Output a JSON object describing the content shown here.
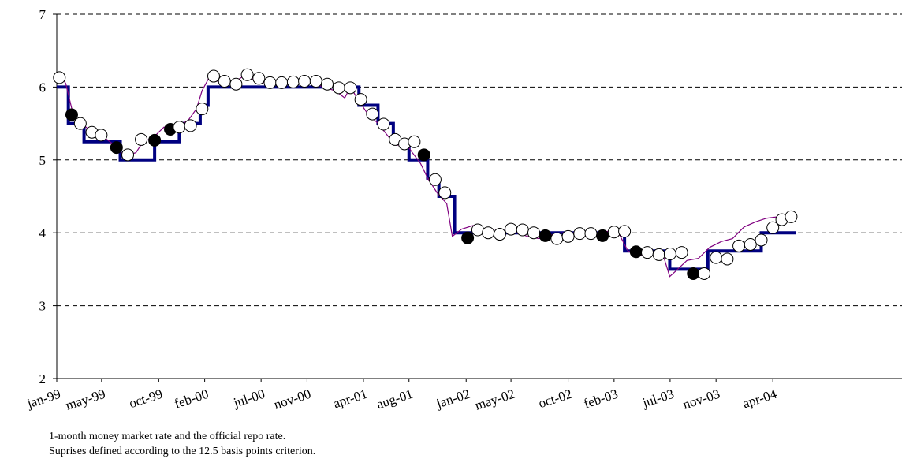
{
  "caption": {
    "line1": "1-month money market rate and the official  repo  rate.",
    "line2": "Suprises defined according to the 12.5 basis points criterion."
  },
  "colors": {
    "repo": "#000080",
    "market": "#800080",
    "grid": "#000000",
    "marker_fill_surprise": "#000000",
    "marker_fill_other": "#ffffff"
  },
  "chart_data": {
    "type": "line",
    "title": "",
    "xlabel": "",
    "ylabel": "",
    "ylim": [
      2,
      7
    ],
    "yticks": [
      2,
      3,
      4,
      5,
      6,
      7
    ],
    "xlim": [
      "1999-01",
      "2004-06"
    ],
    "grid": "horizontal dashed",
    "xtick_labels": [
      {
        "label": "jan-99",
        "date": "1999-01"
      },
      {
        "label": "may-99",
        "date": "1999-05"
      },
      {
        "label": "oct-99",
        "date": "1999-10"
      },
      {
        "label": "feb-00",
        "date": "2000-02"
      },
      {
        "label": "jul-00",
        "date": "2000-07"
      },
      {
        "label": "nov-00",
        "date": "2000-11"
      },
      {
        "label": "apr-01",
        "date": "2001-04"
      },
      {
        "label": "aug-01",
        "date": "2001-08"
      },
      {
        "label": "jan-02",
        "date": "2002-01"
      },
      {
        "label": "may-02",
        "date": "2002-05"
      },
      {
        "label": "oct-02",
        "date": "2002-10"
      },
      {
        "label": "feb-03",
        "date": "2003-02"
      },
      {
        "label": "jul-03",
        "date": "2003-07"
      },
      {
        "label": "nov-03",
        "date": "2003-11"
      },
      {
        "label": "apr-04",
        "date": "2004-04"
      }
    ],
    "repo_rate_steps": [
      {
        "date": "1999-01-01",
        "value": 6.0
      },
      {
        "date": "1999-02-01",
        "value": 5.5
      },
      {
        "date": "1999-03-15",
        "value": 5.25
      },
      {
        "date": "1999-06-20",
        "value": 5.0
      },
      {
        "date": "1999-09-20",
        "value": 5.25
      },
      {
        "date": "1999-11-25",
        "value": 5.5
      },
      {
        "date": "2000-01-20",
        "value": 5.75
      },
      {
        "date": "2000-02-10",
        "value": 6.0
      },
      {
        "date": "2001-03-20",
        "value": 5.75
      },
      {
        "date": "2001-05-10",
        "value": 5.5
      },
      {
        "date": "2001-06-20",
        "value": 5.25
      },
      {
        "date": "2001-08-01",
        "value": 5.0
      },
      {
        "date": "2001-09-20",
        "value": 4.75
      },
      {
        "date": "2001-10-20",
        "value": 4.5
      },
      {
        "date": "2001-12-01",
        "value": 4.0
      },
      {
        "date": "2003-03-01",
        "value": 3.75
      },
      {
        "date": "2003-06-30",
        "value": 3.5
      },
      {
        "date": "2003-10-10",
        "value": 3.75
      },
      {
        "date": "2004-03-01",
        "value": 4.0
      },
      {
        "date": "2004-06-01",
        "value": 4.0
      }
    ],
    "market_rate_points": [
      [
        "1999-01-05",
        6.2
      ],
      [
        "1999-01-25",
        6.05
      ],
      [
        "1999-02-15",
        5.6
      ],
      [
        "1999-03-10",
        5.5
      ],
      [
        "1999-04-10",
        5.35
      ],
      [
        "1999-05-10",
        5.3
      ],
      [
        "1999-06-05",
        5.2
      ],
      [
        "1999-07-01",
        5.05
      ],
      [
        "1999-08-01",
        5.1
      ],
      [
        "1999-08-20",
        5.25
      ],
      [
        "1999-09-15",
        5.3
      ],
      [
        "1999-10-15",
        5.45
      ],
      [
        "1999-11-20",
        5.45
      ],
      [
        "1999-12-20",
        5.55
      ],
      [
        "2000-01-10",
        5.7
      ],
      [
        "2000-01-25",
        5.95
      ],
      [
        "2000-02-15",
        6.15
      ],
      [
        "2000-03-15",
        6.05
      ],
      [
        "2000-04-15",
        6.05
      ],
      [
        "2000-05-15",
        6.15
      ],
      [
        "2000-06-15",
        6.1
      ],
      [
        "2000-07-15",
        6.05
      ],
      [
        "2000-08-15",
        6.05
      ],
      [
        "2000-09-15",
        6.07
      ],
      [
        "2000-10-15",
        6.07
      ],
      [
        "2000-11-15",
        6.05
      ],
      [
        "2000-12-15",
        6.0
      ],
      [
        "2001-01-15",
        5.95
      ],
      [
        "2001-02-10",
        5.85
      ],
      [
        "2001-02-25",
        6.0
      ],
      [
        "2001-03-15",
        5.85
      ],
      [
        "2001-04-10",
        5.65
      ],
      [
        "2001-05-10",
        5.5
      ],
      [
        "2001-06-10",
        5.3
      ],
      [
        "2001-07-01",
        5.2
      ],
      [
        "2001-07-20",
        5.25
      ],
      [
        "2001-08-10",
        5.1
      ],
      [
        "2001-09-01",
        4.95
      ],
      [
        "2001-09-20",
        4.75
      ],
      [
        "2001-10-15",
        4.55
      ],
      [
        "2001-11-10",
        4.4
      ],
      [
        "2001-11-25",
        3.95
      ],
      [
        "2001-12-20",
        4.05
      ],
      [
        "2002-01-20",
        4.1
      ],
      [
        "2002-02-15",
        4.0
      ],
      [
        "2002-03-15",
        4.05
      ],
      [
        "2002-04-15",
        4.05
      ],
      [
        "2002-05-15",
        4.0
      ],
      [
        "2002-06-15",
        3.95
      ],
      [
        "2002-07-15",
        3.92
      ],
      [
        "2002-08-15",
        3.97
      ],
      [
        "2002-09-15",
        4.0
      ],
      [
        "2002-10-15",
        4.0
      ],
      [
        "2002-11-15",
        3.95
      ],
      [
        "2002-12-15",
        4.0
      ],
      [
        "2003-01-15",
        4.02
      ],
      [
        "2003-02-15",
        3.98
      ],
      [
        "2003-03-10",
        3.75
      ],
      [
        "2003-04-01",
        3.72
      ],
      [
        "2003-04-20",
        3.68
      ],
      [
        "2003-05-15",
        3.72
      ],
      [
        "2003-06-15",
        3.65
      ],
      [
        "2003-06-30",
        3.4
      ],
      [
        "2003-07-15",
        3.47
      ],
      [
        "2003-08-15",
        3.62
      ],
      [
        "2003-09-15",
        3.65
      ],
      [
        "2003-10-15",
        3.8
      ],
      [
        "2003-11-15",
        3.88
      ],
      [
        "2003-12-15",
        3.92
      ],
      [
        "2004-01-15",
        4.08
      ],
      [
        "2004-02-15",
        4.15
      ],
      [
        "2004-03-15",
        4.2
      ],
      [
        "2004-04-15",
        4.22
      ]
    ],
    "decision_markers": [
      {
        "date": "1999-01-08",
        "value": 6.13,
        "surprise": false
      },
      {
        "date": "1999-02-10",
        "value": 5.62,
        "surprise": true
      },
      {
        "date": "1999-03-05",
        "value": 5.5,
        "surprise": false
      },
      {
        "date": "1999-04-05",
        "value": 5.38,
        "surprise": false
      },
      {
        "date": "1999-04-30",
        "value": 5.34,
        "surprise": false
      },
      {
        "date": "1999-06-10",
        "value": 5.17,
        "surprise": true
      },
      {
        "date": "1999-07-10",
        "value": 5.07,
        "surprise": false
      },
      {
        "date": "1999-08-15",
        "value": 5.28,
        "surprise": false
      },
      {
        "date": "1999-09-20",
        "value": 5.27,
        "surprise": true
      },
      {
        "date": "1999-11-01",
        "value": 5.42,
        "surprise": true
      },
      {
        "date": "1999-11-25",
        "value": 5.45,
        "surprise": false
      },
      {
        "date": "1999-12-25",
        "value": 5.47,
        "surprise": false
      },
      {
        "date": "2000-01-25",
        "value": 5.7,
        "surprise": false
      },
      {
        "date": "2000-02-25",
        "value": 6.15,
        "surprise": false
      },
      {
        "date": "2000-03-25",
        "value": 6.08,
        "surprise": false
      },
      {
        "date": "2000-04-25",
        "value": 6.04,
        "surprise": false
      },
      {
        "date": "2000-05-25",
        "value": 6.17,
        "surprise": false
      },
      {
        "date": "2000-06-25",
        "value": 6.12,
        "surprise": false
      },
      {
        "date": "2000-07-25",
        "value": 6.06,
        "surprise": false
      },
      {
        "date": "2000-08-25",
        "value": 6.06,
        "surprise": false
      },
      {
        "date": "2000-09-25",
        "value": 6.07,
        "surprise": false
      },
      {
        "date": "2000-10-25",
        "value": 6.08,
        "surprise": false
      },
      {
        "date": "2000-11-25",
        "value": 6.08,
        "surprise": false
      },
      {
        "date": "2000-12-25",
        "value": 6.04,
        "surprise": false
      },
      {
        "date": "2001-01-25",
        "value": 5.99,
        "surprise": false
      },
      {
        "date": "2001-02-25",
        "value": 5.99,
        "surprise": false
      },
      {
        "date": "2001-03-25",
        "value": 5.83,
        "surprise": false
      },
      {
        "date": "2001-04-25",
        "value": 5.63,
        "surprise": false
      },
      {
        "date": "2001-05-25",
        "value": 5.49,
        "surprise": false
      },
      {
        "date": "2001-06-25",
        "value": 5.28,
        "surprise": false
      },
      {
        "date": "2001-07-20",
        "value": 5.22,
        "surprise": false
      },
      {
        "date": "2001-08-15",
        "value": 5.25,
        "surprise": false
      },
      {
        "date": "2001-09-10",
        "value": 5.07,
        "surprise": true
      },
      {
        "date": "2001-10-10",
        "value": 4.73,
        "surprise": false
      },
      {
        "date": "2001-11-05",
        "value": 4.55,
        "surprise": false
      },
      {
        "date": "2002-01-05",
        "value": 3.93,
        "surprise": true
      },
      {
        "date": "2002-02-01",
        "value": 4.04,
        "surprise": false
      },
      {
        "date": "2002-03-01",
        "value": 4.0,
        "surprise": false
      },
      {
        "date": "2002-04-01",
        "value": 3.98,
        "surprise": false
      },
      {
        "date": "2002-05-01",
        "value": 4.05,
        "surprise": false
      },
      {
        "date": "2002-06-01",
        "value": 4.04,
        "surprise": false
      },
      {
        "date": "2002-07-01",
        "value": 4.0,
        "surprise": false
      },
      {
        "date": "2002-08-01",
        "value": 3.96,
        "surprise": true
      },
      {
        "date": "2002-09-01",
        "value": 3.92,
        "surprise": false
      },
      {
        "date": "2002-10-01",
        "value": 3.95,
        "surprise": false
      },
      {
        "date": "2002-11-01",
        "value": 3.99,
        "surprise": false
      },
      {
        "date": "2002-12-01",
        "value": 3.99,
        "surprise": false
      },
      {
        "date": "2003-01-01",
        "value": 3.96,
        "surprise": true
      },
      {
        "date": "2003-02-01",
        "value": 4.01,
        "surprise": false
      },
      {
        "date": "2003-03-01",
        "value": 4.02,
        "surprise": false
      },
      {
        "date": "2003-04-01",
        "value": 3.74,
        "surprise": true
      },
      {
        "date": "2003-05-01",
        "value": 3.73,
        "surprise": false
      },
      {
        "date": "2003-06-01",
        "value": 3.7,
        "surprise": false
      },
      {
        "date": "2003-07-01",
        "value": 3.71,
        "surprise": false
      },
      {
        "date": "2003-08-01",
        "value": 3.73,
        "surprise": false
      },
      {
        "date": "2003-09-01",
        "value": 3.44,
        "surprise": true
      },
      {
        "date": "2003-09-30",
        "value": 3.44,
        "surprise": false
      },
      {
        "date": "2003-11-01",
        "value": 3.66,
        "surprise": false
      },
      {
        "date": "2003-12-01",
        "value": 3.64,
        "surprise": false
      },
      {
        "date": "2004-01-01",
        "value": 3.82,
        "surprise": false
      },
      {
        "date": "2004-02-01",
        "value": 3.84,
        "surprise": false
      },
      {
        "date": "2004-03-01",
        "value": 3.9,
        "surprise": false
      },
      {
        "date": "2004-04-01",
        "value": 4.07,
        "surprise": false
      },
      {
        "date": "2004-04-25",
        "value": 4.18,
        "surprise": false
      },
      {
        "date": "2004-05-20",
        "value": 4.22,
        "surprise": false
      }
    ]
  }
}
